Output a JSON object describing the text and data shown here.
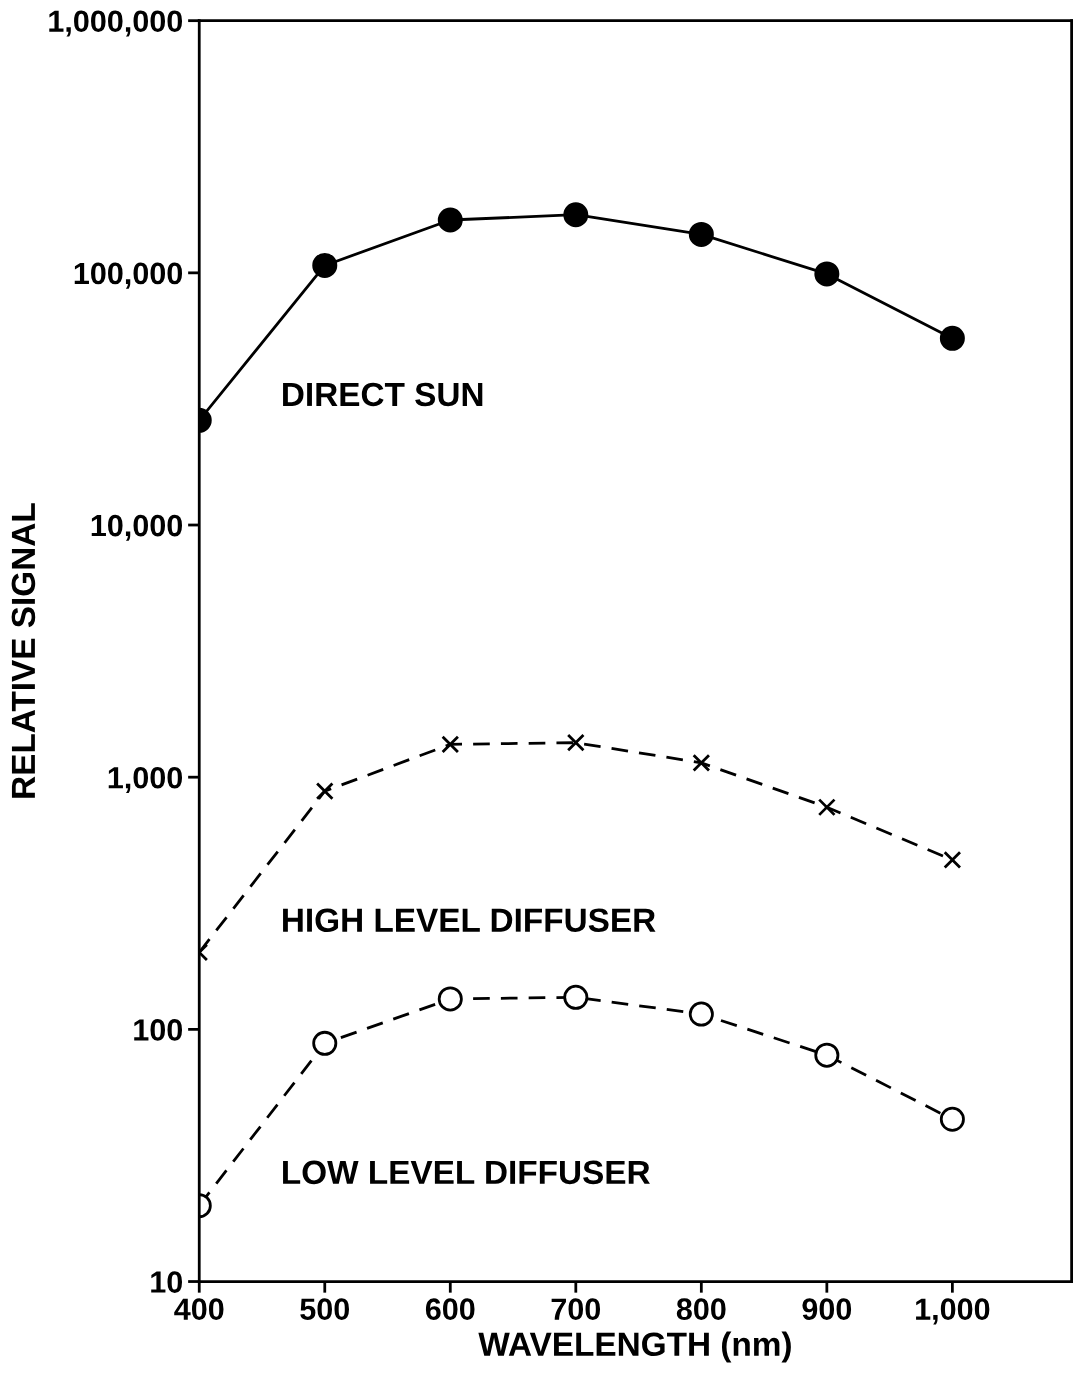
{
  "chart_data": {
    "type": "line",
    "xlabel": "WAVELENGTH (nm)",
    "ylabel": "RELATIVE SIGNAL",
    "log": "y",
    "grid": false,
    "legend": false,
    "xlim": [
      400,
      1095
    ],
    "xticks": [
      400,
      500,
      600,
      700,
      800,
      900,
      {
        "value": 1000,
        "label": "1,000"
      }
    ],
    "ylim": [
      10,
      1000000
    ],
    "yticks": [
      10,
      100,
      {
        "value": 1000,
        "label": "1,000"
      },
      {
        "value": 10000,
        "label": "10,000"
      },
      {
        "value": 100000,
        "label": "100,000"
      },
      {
        "value": 1000000,
        "label": "1,000,000"
      }
    ],
    "x": [
      400,
      500,
      600,
      700,
      800,
      900,
      1000
    ],
    "series": [
      {
        "name": "DIRECT SUN",
        "color": "#000000",
        "marker": "circle",
        "line_style": "solid",
        "values": [
          26000,
          107000,
          162000,
          170000,
          142000,
          99000,
          55000
        ]
      },
      {
        "name": "HIGH LEVEL DIFFUSER",
        "color": "#000000",
        "marker": "cross",
        "line_style": "dashed",
        "values": [
          202,
          880,
          1350,
          1370,
          1140,
          760,
          470
        ]
      },
      {
        "name": "LOW LEVEL DIFFUSER",
        "color": "#000000",
        "marker": "circle-open",
        "line_style": "dashed",
        "values": [
          20,
          88,
          132,
          134,
          115,
          79,
          44
        ]
      }
    ]
  }
}
